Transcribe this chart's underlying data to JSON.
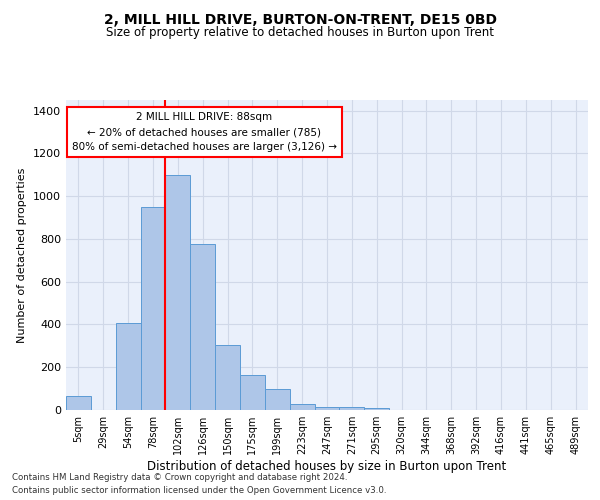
{
  "title": "2, MILL HILL DRIVE, BURTON-ON-TRENT, DE15 0BD",
  "subtitle": "Size of property relative to detached houses in Burton upon Trent",
  "xlabel": "Distribution of detached houses by size in Burton upon Trent",
  "ylabel": "Number of detached properties",
  "footer1": "Contains HM Land Registry data © Crown copyright and database right 2024.",
  "footer2": "Contains public sector information licensed under the Open Government Licence v3.0.",
  "categories": [
    "5sqm",
    "29sqm",
    "54sqm",
    "78sqm",
    "102sqm",
    "126sqm",
    "150sqm",
    "175sqm",
    "199sqm",
    "223sqm",
    "247sqm",
    "271sqm",
    "295sqm",
    "320sqm",
    "344sqm",
    "368sqm",
    "392sqm",
    "416sqm",
    "441sqm",
    "465sqm",
    "489sqm"
  ],
  "values": [
    65,
    0,
    405,
    950,
    1100,
    775,
    305,
    165,
    100,
    30,
    15,
    15,
    10,
    0,
    0,
    0,
    0,
    0,
    0,
    0,
    0
  ],
  "bar_color": "#aec6e8",
  "bar_edge_color": "#5b9bd5",
  "annotation_text_line1": "2 MILL HILL DRIVE: 88sqm",
  "annotation_text_line2": "← 20% of detached houses are smaller (785)",
  "annotation_text_line3": "80% of semi-detached houses are larger (3,126) →",
  "annotation_box_color": "white",
  "annotation_box_edge_color": "red",
  "vline_color": "red",
  "vline_x": 3.5,
  "ylim": [
    0,
    1450
  ],
  "yticks": [
    0,
    200,
    400,
    600,
    800,
    1000,
    1200,
    1400
  ],
  "grid_color": "#d0d8e8",
  "bg_color": "#eaf0fb"
}
